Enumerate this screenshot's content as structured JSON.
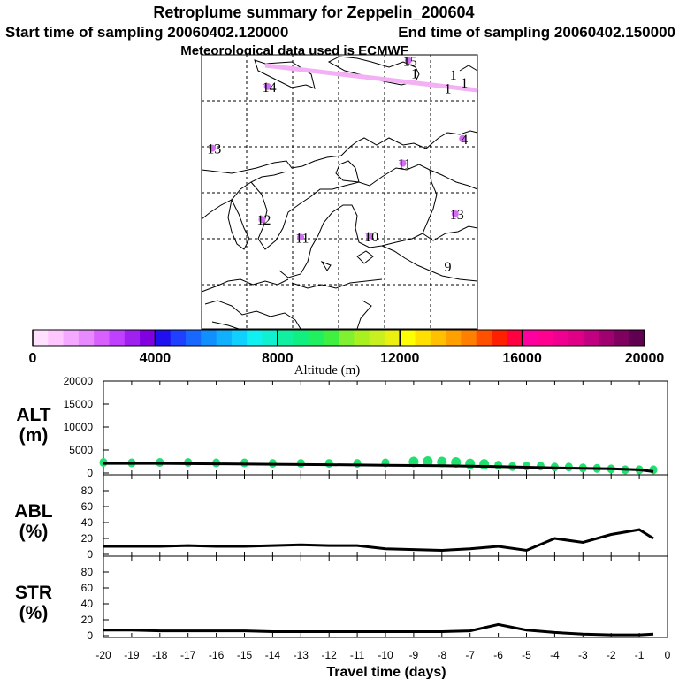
{
  "header": {
    "title": "Retroplume summary for Zeppelin_200604",
    "start_time": "Start time of sampling 20060402.120000",
    "end_time": "End time of sampling 20060402.150000",
    "met_data": "Meteorological data used is ECMWF"
  },
  "colorbar": {
    "label": "Altitude (m)",
    "tick_labels": [
      "0",
      "4000",
      "8000",
      "12000",
      "16000",
      "20000"
    ],
    "colors": [
      "#ffe0ff",
      "#ffc6ff",
      "#f5a8ff",
      "#e88aff",
      "#d760ff",
      "#c040ff",
      "#a020f0",
      "#8000e0",
      "#2010f0",
      "#2040ff",
      "#1868ff",
      "#1090ff",
      "#10b0ff",
      "#10d0ff",
      "#10f0f0",
      "#10f0d0",
      "#10f0a0",
      "#10f080",
      "#20f060",
      "#40f040",
      "#80f030",
      "#a8f020",
      "#c8f020",
      "#ecf010",
      "#ffff00",
      "#ffe000",
      "#ffc000",
      "#ffa000",
      "#ff8000",
      "#ff5000",
      "#ff2000",
      "#ff0040",
      "#ff00a0",
      "#ff0090",
      "#f00090",
      "#e00088",
      "#c00080",
      "#a00070",
      "#800060",
      "#600050"
    ]
  },
  "map": {
    "plume_labels": [
      {
        "text": "15",
        "lon": 0.73,
        "lat": 0.04
      },
      {
        "text": "1",
        "lon": 0.76,
        "lat": 0.085
      },
      {
        "text": "1",
        "lon": 0.9,
        "lat": 0.09
      },
      {
        "text": "1",
        "lon": 0.94,
        "lat": 0.12
      },
      {
        "text": "1",
        "lon": 0.88,
        "lat": 0.14
      },
      {
        "text": "14",
        "lon": 0.22,
        "lat": 0.135
      },
      {
        "text": "4",
        "lon": 0.94,
        "lat": 0.325
      },
      {
        "text": "13",
        "lon": 0.02,
        "lat": 0.36
      },
      {
        "text": "11",
        "lon": 0.71,
        "lat": 0.415
      },
      {
        "text": "12",
        "lon": 0.2,
        "lat": 0.62
      },
      {
        "text": "13",
        "lon": 0.9,
        "lat": 0.6
      },
      {
        "text": "11",
        "lon": 0.34,
        "lat": 0.685
      },
      {
        "text": "10",
        "lon": 0.59,
        "lat": 0.68
      },
      {
        "text": "9",
        "lon": 0.88,
        "lat": 0.79
      }
    ]
  },
  "chart_data": [
    {
      "type": "scatter",
      "panel_label": [
        "ALT",
        "(m)"
      ],
      "xlim": [
        -20,
        0
      ],
      "ylim": [
        0,
        20000
      ],
      "yticks": [
        "0",
        "5000",
        "10000",
        "15000",
        "20000"
      ],
      "x": [
        -20,
        -19,
        -18,
        -17,
        -16,
        -15,
        -14,
        -13,
        -12,
        -11,
        -10,
        -9,
        -8.5,
        -8,
        -7.5,
        -7,
        -6.5,
        -6,
        -5.5,
        -5,
        -4.5,
        -4,
        -3.5,
        -3,
        -2.5,
        -2,
        -1.5,
        -1,
        -0.5
      ],
      "values": [
        2300,
        2200,
        2300,
        2300,
        2200,
        2200,
        2100,
        2100,
        2100,
        2100,
        2200,
        2400,
        2500,
        2400,
        2300,
        2000,
        1900,
        1700,
        1400,
        1500,
        1500,
        1300,
        1300,
        1100,
        1000,
        900,
        700,
        700,
        700
      ],
      "mean_line": {
        "x": [
          -20,
          -18,
          -16,
          -14,
          -12,
          -10,
          -8,
          -6,
          -4,
          -2,
          -1,
          -0.5
        ],
        "values": [
          2100,
          2100,
          2000,
          1900,
          1800,
          1700,
          1600,
          1400,
          1100,
          900,
          700,
          300
        ]
      },
      "point_color": "#20e070"
    },
    {
      "type": "line",
      "panel_label": [
        "ABL",
        "(%)"
      ],
      "xlim": [
        -20,
        0
      ],
      "ylim": [
        0,
        100
      ],
      "yticks": [
        "0",
        "20",
        "40",
        "60",
        "80"
      ],
      "x": [
        -20,
        -19,
        -18,
        -17,
        -16,
        -15,
        -14,
        -13,
        -12,
        -11,
        -10,
        -9,
        -8,
        -7,
        -6,
        -5,
        -4,
        -3,
        -2,
        -1,
        -0.5
      ],
      "values": [
        10,
        10,
        10,
        11,
        10,
        10,
        11,
        12,
        11,
        11,
        7,
        6,
        5,
        7,
        10,
        5,
        20,
        15,
        25,
        31,
        20
      ]
    },
    {
      "type": "line",
      "panel_label": [
        "STR",
        "(%)"
      ],
      "xlim": [
        -20,
        0
      ],
      "ylim": [
        0,
        100
      ],
      "yticks": [
        "0",
        "20",
        "40",
        "60",
        "80"
      ],
      "x": [
        -20,
        -19,
        -18,
        -17,
        -16,
        -15,
        -14,
        -13,
        -12,
        -11,
        -10,
        -9,
        -8,
        -7,
        -6,
        -5,
        -4,
        -3,
        -2,
        -1,
        -0.5
      ],
      "values": [
        7,
        7,
        6,
        6,
        6,
        6,
        5,
        5,
        5,
        5,
        5,
        5,
        5,
        6,
        14,
        7,
        4,
        2,
        1,
        1,
        2
      ]
    }
  ],
  "x_axis": {
    "label": "Travel time (days)",
    "tick_labels": [
      "-20",
      "-19",
      "-18",
      "-17",
      "-16",
      "-15",
      "-14",
      "-13",
      "-12",
      "-11",
      "-10",
      "-9",
      "-8",
      "-7",
      "-6",
      "-5",
      "-4",
      "-3",
      "-2",
      "-1",
      "0"
    ]
  }
}
